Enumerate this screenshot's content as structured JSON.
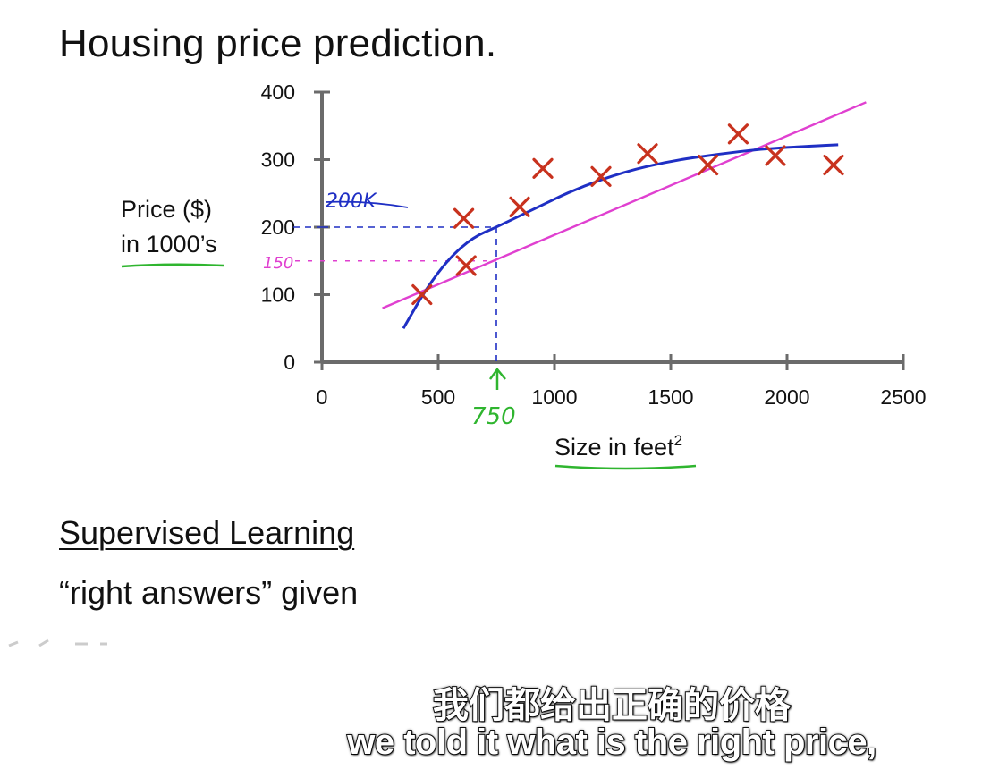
{
  "slide": {
    "title": "Housing price prediction.",
    "supervised_heading": "Supervised Learning",
    "right_answers_quoted": "“right answers”",
    "right_answers_rest": " given"
  },
  "annotations": {
    "value_200k": "200K",
    "value_150": "150",
    "value_750": "750"
  },
  "subtitles": {
    "zh": "我们都给出正确的价格",
    "en": "we told it what is the right price,"
  },
  "colors": {
    "data_marker": "#c8321e",
    "fit_curve": "#1f2fc4",
    "fit_line": "#e040d0",
    "highlight_underline": "#2fb52f",
    "axis": "#6b6b6b"
  },
  "chart_data": {
    "type": "scatter",
    "title": "Housing price prediction.",
    "xlabel": "Size in feet",
    "xlabel_superscript": "2",
    "ylabel_lines": [
      "Price ($)",
      "in 1000’s"
    ],
    "xlim": [
      0,
      2500
    ],
    "ylim": [
      0,
      400
    ],
    "x_ticks": [
      0,
      500,
      1000,
      1500,
      2000,
      2500
    ],
    "y_ticks": [
      0,
      100,
      200,
      300,
      400
    ],
    "grid": false,
    "series": [
      {
        "kind": "points",
        "x": [
          430,
          620,
          610,
          850,
          950,
          1200,
          1400,
          1660,
          1790,
          1950,
          2200
        ],
        "y": [
          100,
          143,
          213,
          230,
          287,
          275,
          309,
          292,
          338,
          306,
          292
        ]
      },
      {
        "kind": "line",
        "x": [
          260,
          2340
        ],
        "y": [
          80,
          385
        ]
      },
      {
        "kind": "curve",
        "x": [
          350,
          450,
          550,
          650,
          750,
          900,
          1100,
          1300,
          1500,
          1700,
          1900,
          2100,
          2220
        ],
        "y": [
          50,
          110,
          155,
          185,
          200,
          225,
          258,
          282,
          298,
          308,
          316,
          320,
          322
        ]
      }
    ],
    "annotations": [
      {
        "text": "200K",
        "x": 750,
        "y": 200
      },
      {
        "text": "150",
        "x": 750,
        "y": 150
      },
      {
        "text": "750",
        "x": 750,
        "y": 0
      }
    ]
  }
}
